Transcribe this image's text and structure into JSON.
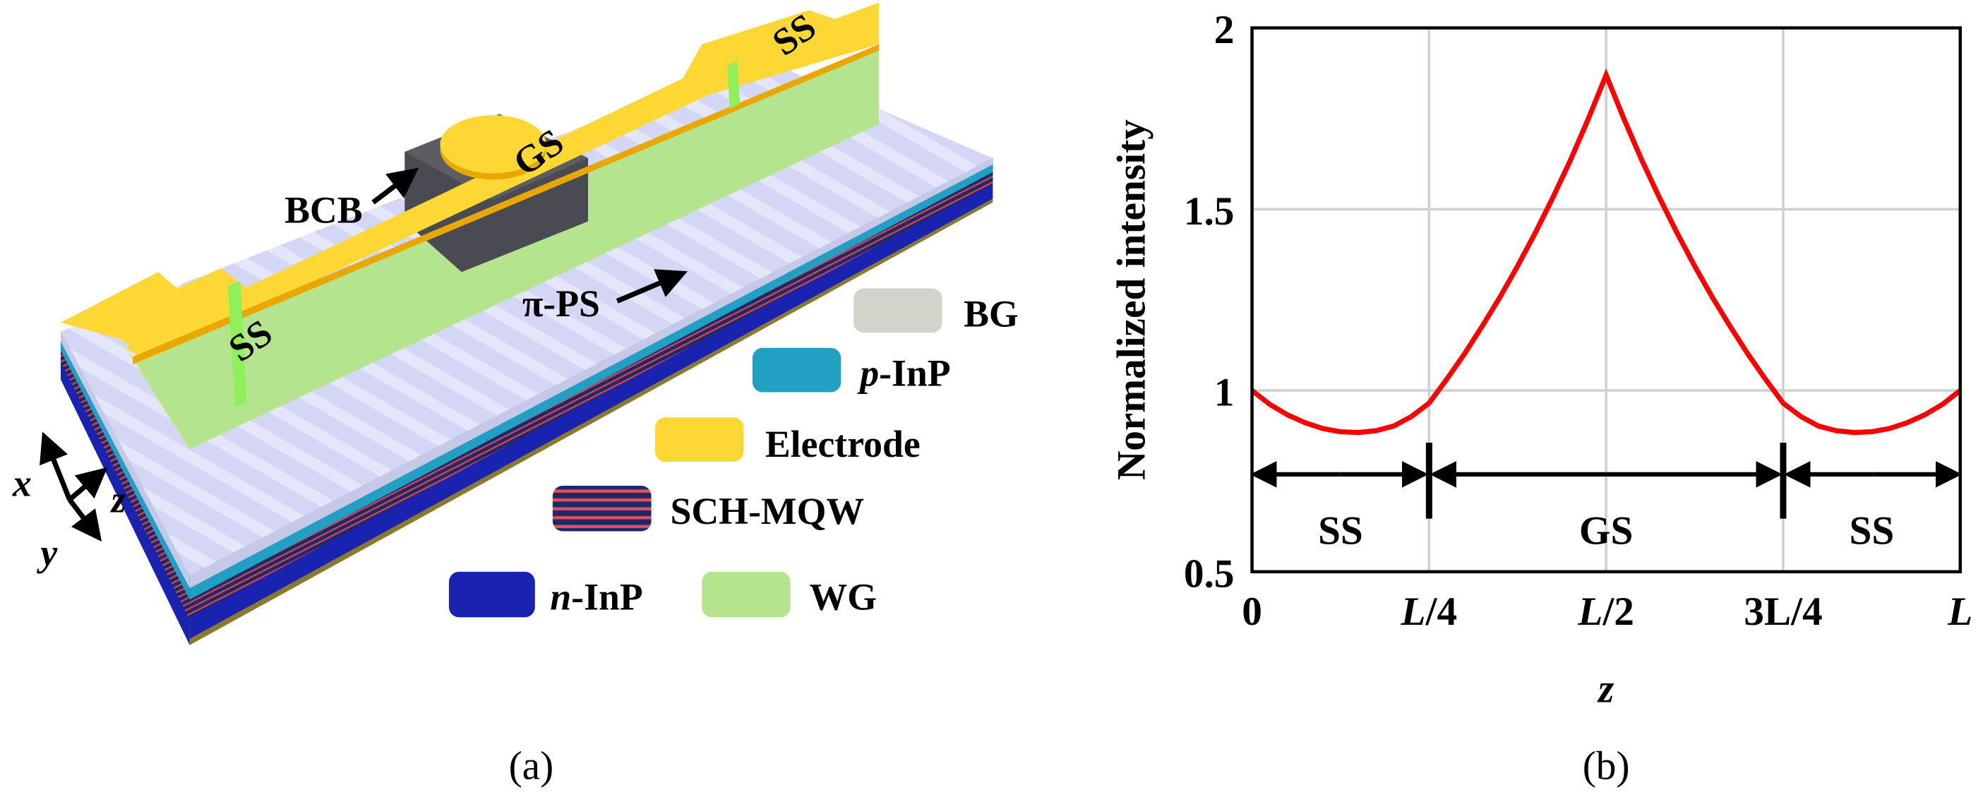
{
  "panel_a": {
    "caption": "(a)",
    "labels": {
      "bcb": "BCB",
      "gs": "GS",
      "ss_left": "SS",
      "ss_right": "SS",
      "pi_ps": "π-PS"
    },
    "axes": {
      "x": "x",
      "y": "y",
      "z": "z"
    },
    "legend": [
      {
        "label": "BG",
        "color": "#d3d3cb"
      },
      {
        "prefix": "p",
        "label": "-InP",
        "color": "#22a0c4"
      },
      {
        "label": "Electrode",
        "color": "#fdd835"
      },
      {
        "label": "SCH-MQW",
        "color": "#1c2a6a"
      },
      {
        "prefix": "n",
        "label": "-InP",
        "color": "#1a22b0"
      },
      {
        "label": "WG",
        "color": "#b5e48f"
      }
    ]
  },
  "panel_b": {
    "caption": "(b)"
  },
  "chart_data": {
    "type": "line",
    "title": "",
    "xlabel": "z",
    "ylabel": "Normalized intensity",
    "xlim": [
      0,
      1
    ],
    "ylim": [
      0.5,
      2
    ],
    "grid": true,
    "x_unit": "L",
    "xticks": [
      0,
      0.25,
      0.5,
      0.75,
      1
    ],
    "xtick_labels": [
      [
        "0",
        ""
      ],
      [
        "L",
        "/4"
      ],
      [
        "L",
        "/2"
      ],
      [
        "3",
        "L/4"
      ],
      [
        "L",
        ""
      ]
    ],
    "yticks": [
      0.5,
      1,
      1.5,
      2
    ],
    "ytick_labels": [
      "0.5",
      "1",
      "1.5",
      "2"
    ],
    "line_color": "#ff0000",
    "series": [
      {
        "name": "Normalized intensity",
        "x": [
          0,
          0.025,
          0.05,
          0.075,
          0.1,
          0.125,
          0.15,
          0.175,
          0.2,
          0.225,
          0.25,
          0.275,
          0.3,
          0.325,
          0.35,
          0.375,
          0.4,
          0.425,
          0.45,
          0.475,
          0.5,
          0.525,
          0.55,
          0.575,
          0.6,
          0.625,
          0.65,
          0.675,
          0.7,
          0.725,
          0.75,
          0.775,
          0.8,
          0.825,
          0.85,
          0.875,
          0.9,
          0.925,
          0.95,
          0.975,
          1
        ],
        "y": [
          1.0,
          0.962,
          0.933,
          0.911,
          0.895,
          0.886,
          0.884,
          0.889,
          0.902,
          0.928,
          0.965,
          1.031,
          1.101,
          1.177,
          1.257,
          1.343,
          1.435,
          1.533,
          1.637,
          1.75,
          1.87,
          1.75,
          1.637,
          1.533,
          1.435,
          1.343,
          1.257,
          1.177,
          1.101,
          1.031,
          0.965,
          0.928,
          0.902,
          0.889,
          0.884,
          0.886,
          0.895,
          0.911,
          0.933,
          0.962,
          1.0
        ]
      }
    ],
    "annotations": [
      {
        "label": "SS",
        "from": 0,
        "to": 0.25
      },
      {
        "label": "GS",
        "from": 0.25,
        "to": 0.75
      },
      {
        "label": "SS",
        "from": 0.75,
        "to": 1
      }
    ]
  }
}
